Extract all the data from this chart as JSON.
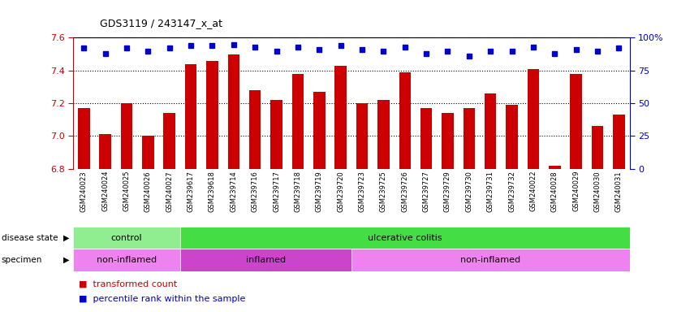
{
  "title": "GDS3119 / 243147_x_at",
  "samples": [
    "GSM240023",
    "GSM240024",
    "GSM240025",
    "GSM240026",
    "GSM240027",
    "GSM239617",
    "GSM239618",
    "GSM239714",
    "GSM239716",
    "GSM239717",
    "GSM239718",
    "GSM239719",
    "GSM239720",
    "GSM239723",
    "GSM239725",
    "GSM239726",
    "GSM239727",
    "GSM239729",
    "GSM239730",
    "GSM239731",
    "GSM239732",
    "GSM240022",
    "GSM240028",
    "GSM240029",
    "GSM240030",
    "GSM240031"
  ],
  "bar_values": [
    7.17,
    7.01,
    7.2,
    7.0,
    7.14,
    7.44,
    7.46,
    7.5,
    7.28,
    7.22,
    7.38,
    7.27,
    7.43,
    7.2,
    7.22,
    7.39,
    7.17,
    7.14,
    7.17,
    7.26,
    7.19,
    7.41,
    6.82,
    7.38,
    7.06,
    7.13
  ],
  "percentile_values": [
    92,
    88,
    92,
    90,
    92,
    94,
    94,
    95,
    93,
    90,
    93,
    91,
    94,
    91,
    90,
    93,
    88,
    90,
    86,
    90,
    90,
    93,
    88,
    91,
    90,
    92
  ],
  "ylim_left": [
    6.8,
    7.6
  ],
  "ylim_right": [
    0,
    100
  ],
  "yticks_left": [
    6.8,
    7.0,
    7.2,
    7.4,
    7.6
  ],
  "yticks_right": [
    0,
    25,
    50,
    75,
    100
  ],
  "bar_color": "#CC0000",
  "dot_color": "#0000CC",
  "bar_bottom": 6.8,
  "disease_state_groups": [
    {
      "label": "control",
      "start": 0,
      "end": 5,
      "color": "#90EE90"
    },
    {
      "label": "ulcerative colitis",
      "start": 5,
      "end": 26,
      "color": "#44DD44"
    }
  ],
  "specimen_groups": [
    {
      "label": "non-inflamed",
      "start": 0,
      "end": 5,
      "color": "#EE82EE"
    },
    {
      "label": "inflamed",
      "start": 5,
      "end": 13,
      "color": "#CC44CC"
    },
    {
      "label": "non-inflamed",
      "start": 13,
      "end": 26,
      "color": "#EE82EE"
    }
  ],
  "legend_red_label": "transformed count",
  "legend_blue_label": "percentile rank within the sample",
  "xtick_bg_color": "#C8C8C8",
  "fig_bg": "#FFFFFF"
}
